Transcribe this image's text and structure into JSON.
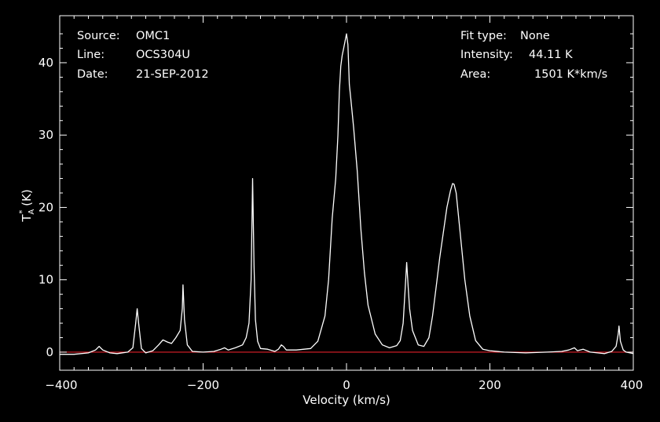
{
  "chart_data": {
    "type": "line",
    "xlabel": "Velocity (km/s)",
    "ylabel": {
      "main": "T",
      "sup": "*",
      "sub": "A",
      "unit": " (K)"
    },
    "xlim": [
      -400,
      400
    ],
    "ylim": [
      -2.5,
      46.5
    ],
    "x_ticks": [
      -400,
      -200,
      0,
      200,
      400
    ],
    "y_ticks": [
      0,
      10,
      20,
      30,
      40
    ],
    "baseline": 0,
    "colors": {
      "background": "#000000",
      "axes": "#ffffff",
      "spectrum": "#ffffff",
      "baseline": "#e0202a"
    },
    "info_left": [
      {
        "label": "Source:",
        "value": "OMC1"
      },
      {
        "label": "Line:",
        "value": "OCS304U"
      },
      {
        "label": "Date:",
        "value": "21-SEP-2012"
      }
    ],
    "info_right": [
      {
        "label": "Fit type:",
        "value": "None"
      },
      {
        "label": "Intensity:",
        "value": "44.11 K"
      },
      {
        "label": "Area:",
        "value": "1501 K*km/s"
      }
    ],
    "series": [
      {
        "x": [
          -400,
          -380,
          -360,
          -350,
          -345,
          -340,
          -330,
          -320,
          -305,
          -298,
          -294,
          -292,
          -290,
          -286,
          -280,
          -270,
          -262,
          -256,
          -250,
          -244,
          -238,
          -232,
          -229,
          -228,
          -226,
          -222,
          -215,
          -200,
          -185,
          -175,
          -170,
          -165,
          -155,
          -145,
          -140,
          -136,
          -133,
          -131,
          -129,
          -127,
          -124,
          -120,
          -110,
          -100,
          -95,
          -91,
          -88,
          -84,
          -70,
          -50,
          -40,
          -30,
          -25,
          -20,
          -15,
          -12,
          -10,
          -8,
          -6,
          -4,
          -2,
          0,
          2,
          4,
          6,
          8,
          10,
          15,
          20,
          25,
          30,
          40,
          50,
          60,
          70,
          75,
          79,
          82,
          84,
          86,
          88,
          92,
          100,
          108,
          115,
          120,
          125,
          130,
          135,
          140,
          145,
          148,
          150,
          153,
          158,
          165,
          172,
          180,
          190,
          200,
          220,
          250,
          280,
          300,
          310,
          318,
          322,
          330,
          340,
          360,
          370,
          376,
          379,
          380,
          382,
          386,
          390,
          400
        ],
        "y": [
          -0.3,
          -0.3,
          -0.1,
          0.3,
          0.8,
          0.3,
          -0.1,
          -0.2,
          0.0,
          0.6,
          4.0,
          6.0,
          4.0,
          0.5,
          -0.1,
          0.2,
          1.0,
          1.7,
          1.4,
          1.2,
          2.0,
          3.0,
          6.0,
          9.3,
          4.5,
          1.0,
          0.1,
          0.0,
          0.1,
          0.4,
          0.6,
          0.3,
          0.6,
          1.0,
          2.0,
          4.0,
          10.0,
          24.0,
          12.0,
          4.5,
          1.5,
          0.5,
          0.4,
          0.1,
          0.4,
          1.0,
          0.8,
          0.3,
          0.3,
          0.5,
          1.5,
          5.0,
          10.0,
          18.5,
          24.0,
          30.0,
          36.0,
          39.5,
          41.0,
          42.0,
          43.0,
          44.0,
          42.5,
          37.0,
          35.0,
          33.0,
          31.0,
          25.0,
          17.0,
          11.0,
          6.5,
          2.5,
          1.0,
          0.6,
          0.9,
          1.6,
          4.0,
          9.0,
          12.4,
          9.0,
          6.0,
          3.0,
          1.0,
          0.8,
          2.0,
          5.0,
          9.0,
          13.0,
          16.5,
          20.0,
          22.3,
          23.3,
          23.2,
          22.0,
          17.0,
          10.0,
          5.0,
          1.6,
          0.4,
          0.2,
          0.0,
          -0.1,
          0.0,
          0.1,
          0.3,
          0.6,
          0.2,
          0.4,
          0.0,
          -0.2,
          0.1,
          0.8,
          2.5,
          3.6,
          1.5,
          0.3,
          0.0,
          -0.2
        ]
      }
    ]
  }
}
